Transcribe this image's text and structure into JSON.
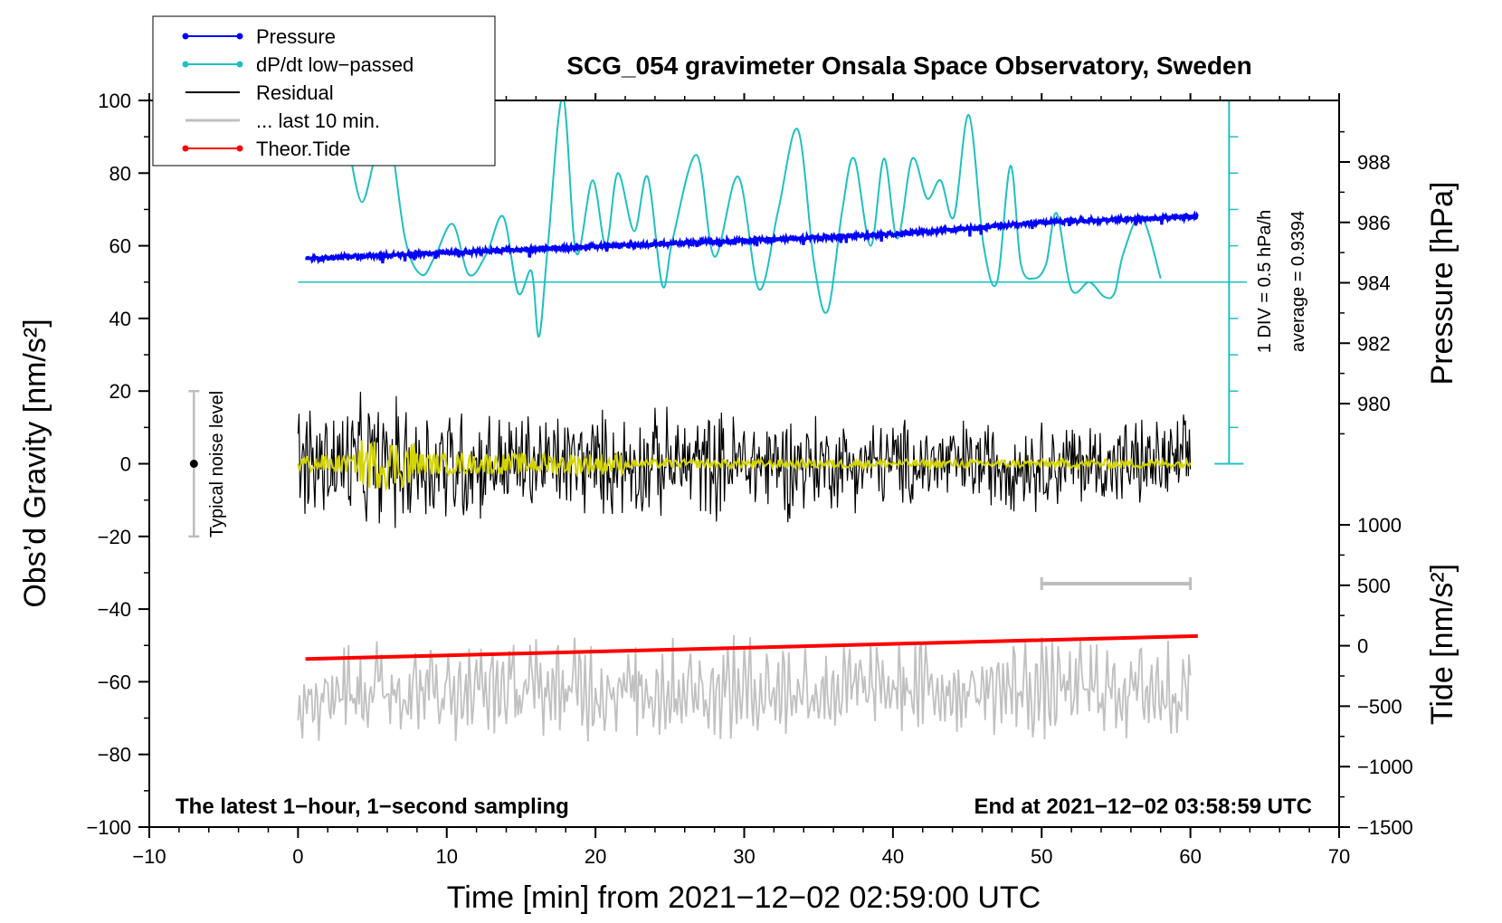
{
  "chart_data": {
    "type": "line",
    "title": "SCG_054 gravimeter Onsala Space Observatory, Sweden",
    "xlabel": "Time [min] from 2021−12−02 02:59:00 UTC",
    "ylabel_left": "Obs’d Gravity [nm/s²]",
    "ylabel_right_top": "Pressure [hPa]",
    "ylabel_right_bottom": "Tide [nm/s²]",
    "xlim": [
      -10,
      70
    ],
    "ylim_left": [
      -100,
      100
    ],
    "x_ticks": [
      "−10",
      "0",
      "10",
      "20",
      "30",
      "40",
      "50",
      "60",
      "70"
    ],
    "y_ticks_left": [
      "100",
      "80",
      "60",
      "40",
      "20",
      "0",
      "−20",
      "−40",
      "−60",
      "−80",
      "−100"
    ],
    "pressure_ticks": [
      "988",
      "986",
      "984",
      "982",
      "980"
    ],
    "tide_ticks": [
      "1000",
      "500",
      "0",
      "−500",
      "−1000",
      "−1500"
    ],
    "legend": [
      {
        "label": "Pressure",
        "color": "#0000ff",
        "marker": true
      },
      {
        "label": "dP/dt low−passed",
        "color": "#20c0c0",
        "marker": true
      },
      {
        "label": "Residual",
        "color": "#000000",
        "marker": false
      },
      {
        "label": "... last 10 min.",
        "color": "#c0c0c0",
        "marker": false
      },
      {
        "label": "Theor.Tide",
        "color": "#ff0000",
        "marker": true
      }
    ],
    "annotations": {
      "bottom_left": "The latest 1−hour, 1−second sampling",
      "bottom_right": "End at 2021−12−02 03:58:59 UTC",
      "noise": "Typical noise level",
      "div": "1 DIV = 0.5 hPa/h",
      "average": "average = 0.9394"
    },
    "series": {
      "pressure": {
        "name": "Pressure",
        "unit": "hPa",
        "x": [
          0.5,
          10,
          20,
          30,
          40,
          50,
          60.5
        ],
        "values": [
          984.8,
          985.0,
          985.2,
          985.4,
          985.6,
          986.0,
          986.2
        ]
      },
      "dpdt": {
        "name": "dP/dt low−passed",
        "x": [
          3.5,
          4.3,
          5.2,
          6.0,
          7.2,
          8.3,
          9.2,
          10.4,
          11.5,
          12.7,
          13.8,
          14.8,
          15.7,
          16.2,
          16.8,
          17.8,
          18.7,
          19.8,
          20.7,
          21.5,
          22.6,
          23.5,
          24.5,
          25.2,
          26.8,
          28.0,
          29.6,
          31.0,
          32.3,
          33.6,
          34.7,
          35.6,
          36.6,
          37.4,
          38.5,
          39.4,
          40.3,
          41.3,
          42.3,
          43.2,
          44.1,
          45.1,
          46.1,
          47.0,
          47.9,
          48.6,
          49.5,
          50.3,
          51.0,
          52.0,
          53.2,
          54.2,
          54.9,
          55.5,
          56.7,
          58.0
        ],
        "values": [
          85,
          72,
          85,
          95,
          62,
          52,
          57,
          66,
          52,
          58,
          68,
          47,
          53,
          35,
          60,
          101,
          58,
          78,
          60,
          80,
          64,
          79,
          49,
          62,
          85,
          57,
          79,
          48,
          70,
          92,
          55,
          42,
          70,
          84,
          60,
          84,
          62,
          84,
          73,
          78,
          68,
          96,
          60,
          50,
          82,
          55,
          51,
          55,
          69,
          48,
          50,
          46,
          47,
          58,
          68,
          51
        ]
      },
      "residual": {
        "name": "Residual",
        "x_range": [
          0,
          60
        ],
        "noise_amplitude": 18
      },
      "last10": {
        "name": "... last 10 min.",
        "x_range": [
          50,
          60
        ]
      },
      "tide": {
        "name": "Theor.Tide",
        "unit": "nm/s²",
        "x": [
          0.5,
          60.5
        ],
        "values": [
          -110,
          80
        ]
      }
    },
    "noise_level": {
      "x": -7,
      "center": 0,
      "half_range": 20
    }
  }
}
